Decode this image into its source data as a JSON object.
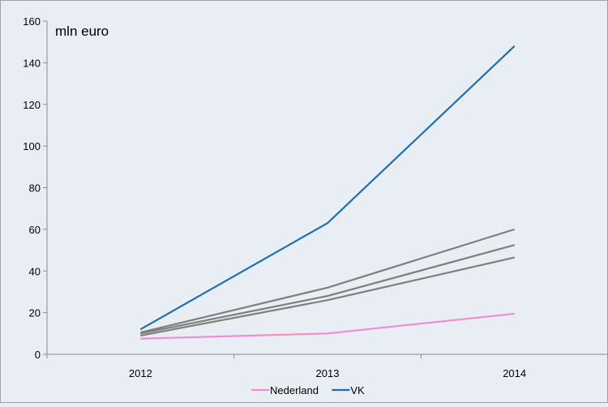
{
  "chart_data": {
    "type": "line",
    "unit_label": "mln euro",
    "categories": [
      "2012",
      "2013",
      "2014"
    ],
    "ylim": [
      0,
      160
    ],
    "yticks": [
      0,
      20,
      40,
      60,
      80,
      100,
      120,
      140,
      160
    ],
    "grid": false,
    "legend_position": "bottom",
    "series": [
      {
        "name": "Nederland",
        "values": [
          7.5,
          10,
          19.5
        ],
        "color": "#f08ccf",
        "in_legend": true
      },
      {
        "name": "VK",
        "values": [
          12,
          63,
          148
        ],
        "color": "#1f6fae",
        "in_legend": true
      },
      {
        "values": [
          10.5,
          32,
          60
        ],
        "color": "#7f7f7f",
        "in_legend": false
      },
      {
        "values": [
          10,
          28,
          52.5
        ],
        "color": "#7f7f7f",
        "in_legend": false
      },
      {
        "values": [
          9,
          26,
          46.5
        ],
        "color": "#7f7f7f",
        "in_legend": false
      }
    ]
  }
}
